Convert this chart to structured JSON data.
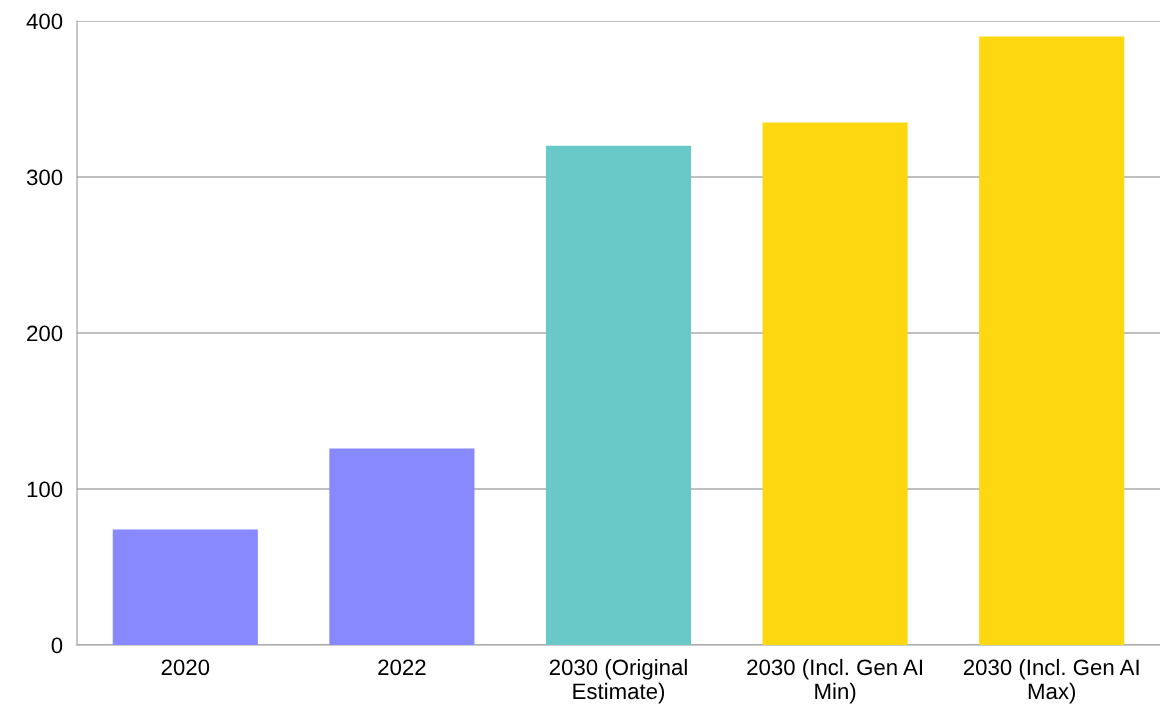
{
  "chart_data": {
    "type": "bar",
    "categories": [
      "2020",
      "2022",
      "2030 (Original Estimate)",
      "2030 (Incl. Gen AI Min)",
      "2030 (Incl. Gen AI Max)"
    ],
    "values": [
      74,
      126,
      320,
      335,
      390
    ],
    "colors": [
      "#8888ff",
      "#8888ff",
      "#68c9c8",
      "#fdd70f",
      "#fdd70f"
    ],
    "ylim": [
      0,
      400
    ],
    "yticks": [
      0,
      100,
      200,
      300,
      400
    ],
    "grid": "y"
  }
}
